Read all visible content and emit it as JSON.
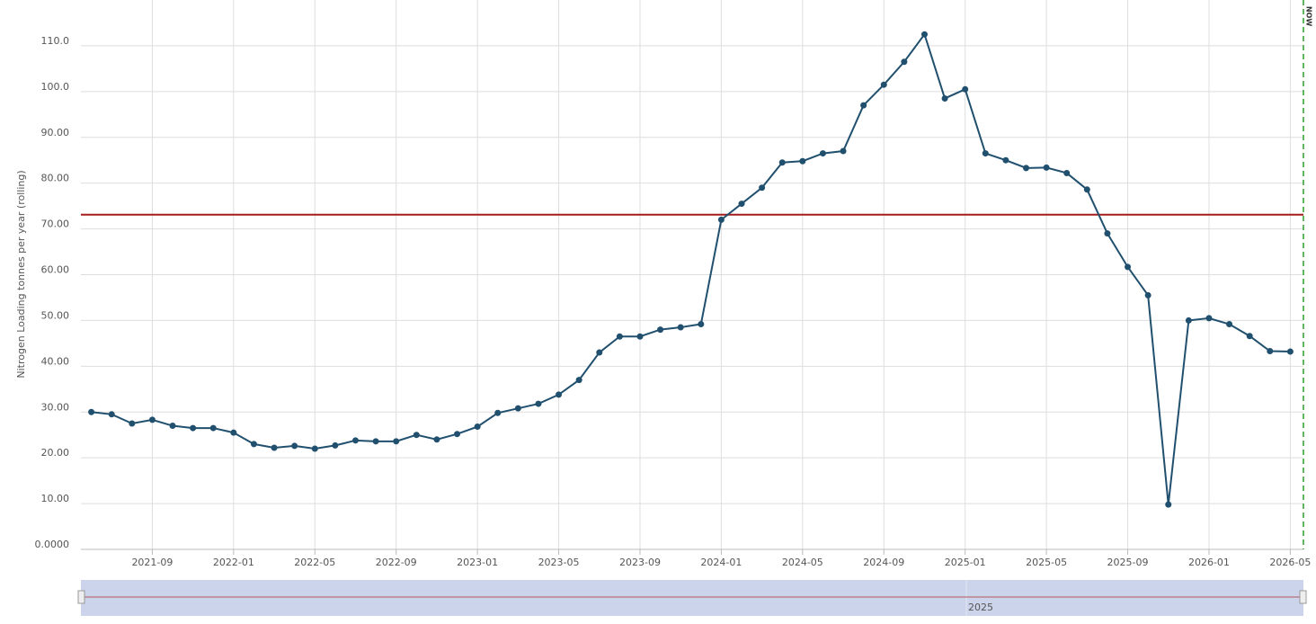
{
  "chart_data": {
    "type": "line",
    "y_axis_label": "Nitrogen Loading tonnes per year (rolling)",
    "now_label": "NOW",
    "navigator_label": "2025",
    "x": [
      "2021-06",
      "2021-07",
      "2021-08",
      "2021-09",
      "2021-10",
      "2021-11",
      "2021-12",
      "2022-01",
      "2022-02",
      "2022-03",
      "2022-04",
      "2022-05",
      "2022-06",
      "2022-07",
      "2022-08",
      "2022-09",
      "2022-10",
      "2022-11",
      "2022-12",
      "2023-01",
      "2023-02",
      "2023-03",
      "2023-04",
      "2023-05",
      "2023-06",
      "2023-07",
      "2023-08",
      "2023-09",
      "2023-10",
      "2023-11",
      "2023-12",
      "2024-01",
      "2024-02",
      "2024-03",
      "2024-04",
      "2024-05",
      "2024-06",
      "2024-07",
      "2024-08",
      "2024-09",
      "2024-10",
      "2024-11",
      "2024-12",
      "2025-01",
      "2025-02",
      "2025-03",
      "2025-04",
      "2025-05",
      "2025-06",
      "2025-07",
      "2025-08",
      "2025-09",
      "2025-10",
      "2025-11",
      "2025-12",
      "2026-01",
      "2026-02",
      "2026-03",
      "2026-04",
      "2026-05"
    ],
    "series": [
      {
        "color": "#21506f",
        "values": [
          30,
          29.5,
          27.5,
          28.3,
          27,
          26.5,
          26.5,
          25.5,
          23,
          22.2,
          22.6,
          22,
          22.7,
          23.8,
          23.6,
          23.6,
          25,
          24,
          25.2,
          26.8,
          29.8,
          30.8,
          31.8,
          33.8,
          37,
          43,
          46.5,
          46.5,
          48,
          48.5,
          49.2,
          72,
          75.5,
          79,
          84.5,
          84.8,
          86.5,
          87,
          97,
          101.5,
          106.5,
          112.5,
          98.5,
          100.5,
          86.5,
          85,
          83.3,
          83.4,
          82.2,
          78.6,
          69,
          61.7,
          55.5,
          9.8,
          50,
          50.5,
          49.2,
          46.6,
          43.3,
          43.2
        ]
      }
    ],
    "threshold": 73.1,
    "threshold_color": "#a61c1c",
    "now_color": "#2e9e2e",
    "xlim": [
      "2021-05",
      "2026-06"
    ],
    "xticks": [
      "2021-09",
      "2022-01",
      "2022-05",
      "2022-09",
      "2023-01",
      "2023-05",
      "2023-09",
      "2024-01",
      "2024-05",
      "2024-09",
      "2025-01",
      "2025-05",
      "2025-09",
      "2026-01",
      "2026-05"
    ],
    "ylim": [
      0,
      120
    ],
    "yticks": [
      {
        "value": 0,
        "label": "0.0000"
      },
      {
        "value": 10,
        "label": "10.00"
      },
      {
        "value": 20,
        "label": "20.00"
      },
      {
        "value": 30,
        "label": "30.00"
      },
      {
        "value": 40,
        "label": "40.00"
      },
      {
        "value": 50,
        "label": "50.00"
      },
      {
        "value": 60,
        "label": "60.00"
      },
      {
        "value": 70,
        "label": "70.00"
      },
      {
        "value": 80,
        "label": "80.00"
      },
      {
        "value": 90,
        "label": "90.00"
      },
      {
        "value": 100,
        "label": "100.0"
      },
      {
        "value": 110,
        "label": "110.0"
      }
    ],
    "grid": true
  }
}
